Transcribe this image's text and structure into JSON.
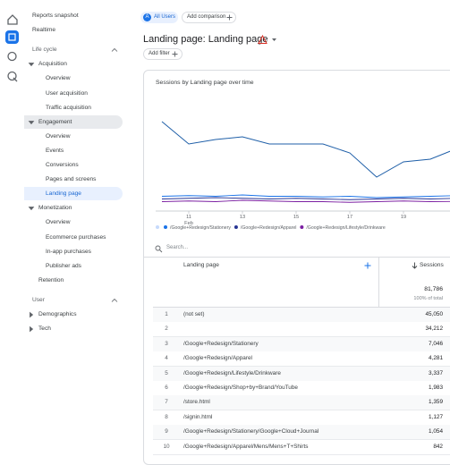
{
  "sidebar": {
    "items": [
      {
        "label": "Reports snapshot",
        "kind": "item",
        "level": 0
      },
      {
        "label": "Realtime",
        "kind": "item",
        "level": 0
      },
      {
        "label": "Life cycle",
        "kind": "section",
        "level": 0,
        "expanded": true
      },
      {
        "label": "Acquisition",
        "kind": "group",
        "level": 1,
        "expanded": true
      },
      {
        "label": "Overview",
        "kind": "item",
        "level": 2
      },
      {
        "label": "User acquisition",
        "kind": "item",
        "level": 2
      },
      {
        "label": "Traffic acquisition",
        "kind": "item",
        "level": 2
      },
      {
        "label": "Engagement",
        "kind": "group",
        "level": 1,
        "expanded": true,
        "active": true
      },
      {
        "label": "Overview",
        "kind": "item",
        "level": 2
      },
      {
        "label": "Events",
        "kind": "item",
        "level": 2
      },
      {
        "label": "Conversions",
        "kind": "item",
        "level": 2
      },
      {
        "label": "Pages and screens",
        "kind": "item",
        "level": 2
      },
      {
        "label": "Landing page",
        "kind": "item",
        "level": 2,
        "selected": true
      },
      {
        "label": "Monetization",
        "kind": "group",
        "level": 1,
        "expanded": true
      },
      {
        "label": "Overview",
        "kind": "item",
        "level": 2
      },
      {
        "label": "Ecommerce purchases",
        "kind": "item",
        "level": 2
      },
      {
        "label": "In-app purchases",
        "kind": "item",
        "level": 2
      },
      {
        "label": "Publisher ads",
        "kind": "item",
        "level": 2
      },
      {
        "label": "Retention",
        "kind": "item",
        "level": 1
      },
      {
        "label": "User",
        "kind": "section",
        "level": 0,
        "expanded": true
      },
      {
        "label": "Demographics",
        "kind": "group",
        "level": 1,
        "expanded": false
      },
      {
        "label": "Tech",
        "kind": "group",
        "level": 1,
        "expanded": false
      }
    ]
  },
  "header": {
    "segment_badge": "A",
    "segment": "All Users",
    "add_comparison": "Add comparison",
    "title": "Landing page: Landing page",
    "add_filter": "Add filter"
  },
  "chart": {
    "type": "line",
    "title": "Sessions by Landing page over time",
    "categories": [
      null,
      "11",
      null,
      "13",
      null,
      "15",
      null,
      "17",
      null,
      "19",
      null,
      null
    ],
    "x_sublabel": "Feb",
    "ylim": [
      0,
      8000
    ],
    "series": [
      {
        "color": "#1f5fa8",
        "values": [
          6667,
          5000,
          5333,
          5533,
          5000,
          5000,
          5000,
          4333,
          2533,
          3667,
          3867,
          4667
        ]
      },
      {
        "name": "/Google+Redesign/Stationery",
        "color": "#1a73e8",
        "values": [
          1100,
          1150,
          1100,
          1200,
          1100,
          1100,
          1050,
          1100,
          1000,
          1050,
          1100,
          1150
        ]
      },
      {
        "name": "/Google+Redesign/Apparel",
        "color": "#283593",
        "values": [
          900,
          950,
          1000,
          950,
          900,
          950,
          900,
          850,
          900,
          950,
          900,
          950
        ]
      },
      {
        "name": "/Google+Redesign/Lifestyle/Drinkware",
        "color": "#7b1fa2",
        "values": [
          700,
          750,
          700,
          800,
          750,
          700,
          700,
          650,
          700,
          750,
          700,
          720
        ]
      }
    ]
  },
  "table": {
    "search_placeholder": "Search...",
    "columns": [
      "Landing page",
      "Sessions"
    ],
    "total": "81,786",
    "total_note": "100% of total",
    "rows": [
      [
        1,
        "(not set)",
        "45,050"
      ],
      [
        2,
        null,
        "34,212"
      ],
      [
        3,
        "/Google+Redesign/Stationery",
        "7,046"
      ],
      [
        4,
        "/Google+Redesign/Apparel",
        "4,281"
      ],
      [
        5,
        "/Google+Redesign/Lifestyle/Drinkware",
        "3,337"
      ],
      [
        6,
        "/Google+Redesign/Shop+by+Brand/YouTube",
        "1,983"
      ],
      [
        7,
        "/store.html",
        "1,359"
      ],
      [
        8,
        "/signin.html",
        "1,127"
      ],
      [
        9,
        "/Google+Redesign/Stationery/Google+Cloud+Journal",
        "1,054"
      ],
      [
        10,
        "/Google+Redesign/Apparel/Mens/Mens+T+Shirts",
        "842"
      ]
    ]
  }
}
